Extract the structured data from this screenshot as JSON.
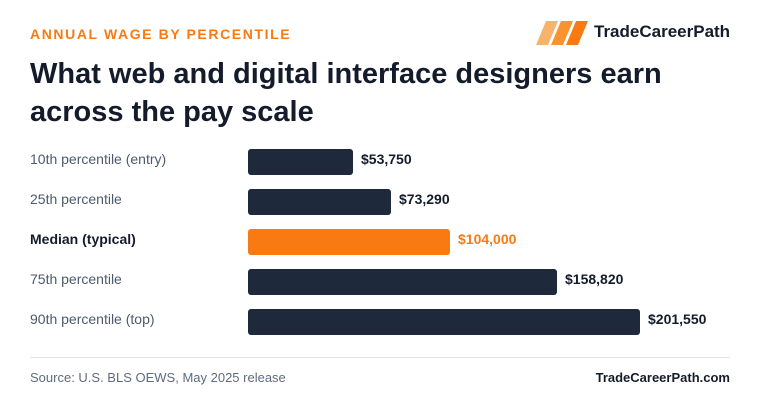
{
  "header": {
    "kicker": "ANNUAL WAGE BY PERCENTILE",
    "brand_name": "TradeCareerPath",
    "brand_icon": "stripes-logo-icon",
    "title": "What web and digital interface designers earn across the pay scale"
  },
  "colors": {
    "accent": "#f97a12",
    "bar": "#1e293b",
    "text_dark": "#141c2b",
    "text_muted": "#4d5a6c"
  },
  "chart_data": {
    "type": "bar",
    "orientation": "horizontal",
    "categories": [
      "10th percentile (entry)",
      "25th percentile",
      "Median (typical)",
      "75th percentile",
      "90th percentile (top)"
    ],
    "values": [
      53750,
      73290,
      104000,
      158820,
      201550
    ],
    "value_labels": [
      "$53,750",
      "$73,290",
      "$104,000",
      "$158,820",
      "$201,550"
    ],
    "highlight_index": 2,
    "xlim": [
      0,
      201550
    ],
    "grid": false,
    "legend": "none"
  },
  "footer": {
    "source": "Source: U.S. BLS OEWS, May 2025 release",
    "site": "TradeCareerPath.com"
  }
}
